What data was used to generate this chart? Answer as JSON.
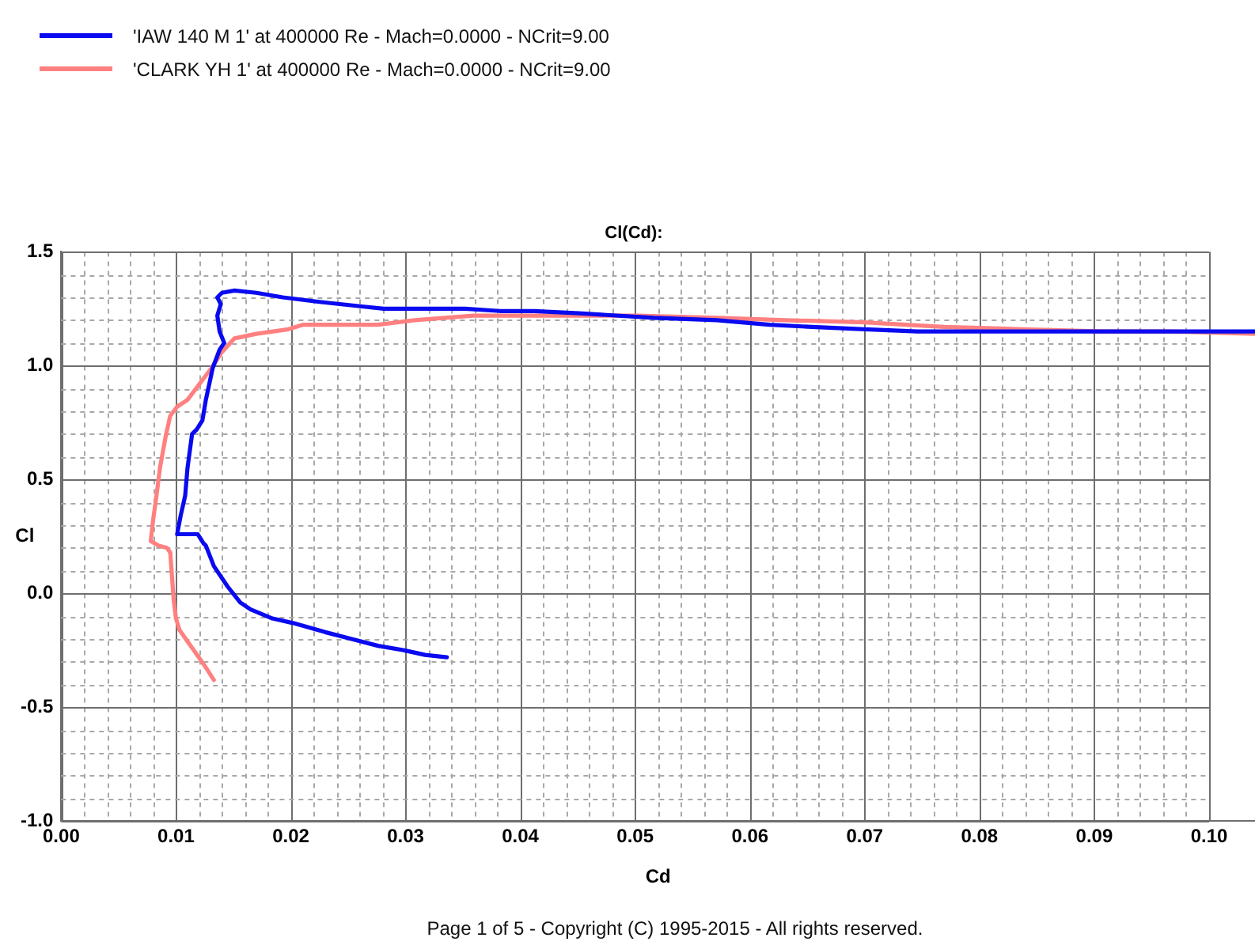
{
  "chart_data": {
    "type": "line",
    "title": "Cl(Cd):",
    "xlabel": "Cd",
    "ylabel": "Cl",
    "annotations": [
      "Page 1 of 5 - Copyright (C) 1995-2015 - All rights reserved."
    ],
    "legend": "top left",
    "grid": true,
    "marker": "none",
    "xlim": [
      0,
      0.104
    ],
    "ylim": [
      -1,
      1.5
    ],
    "xticks": [
      {
        "value": 0,
        "label": "0.00"
      },
      {
        "value": 0.002,
        "label": null
      },
      {
        "value": 0.004,
        "label": null
      },
      {
        "value": 0.006,
        "label": null
      },
      {
        "value": 0.008,
        "label": null
      },
      {
        "value": 0.01,
        "label": "0.01"
      },
      {
        "value": 0.012,
        "label": null
      },
      {
        "value": 0.014,
        "label": null
      },
      {
        "value": 0.016,
        "label": null
      },
      {
        "value": 0.018,
        "label": null
      },
      {
        "value": 0.02,
        "label": "0.02"
      },
      {
        "value": 0.022,
        "label": null
      },
      {
        "value": 0.024,
        "label": null
      },
      {
        "value": 0.026,
        "label": null
      },
      {
        "value": 0.028,
        "label": null
      },
      {
        "value": 0.03,
        "label": "0.03"
      },
      {
        "value": 0.032,
        "label": null
      },
      {
        "value": 0.034,
        "label": null
      },
      {
        "value": 0.036,
        "label": null
      },
      {
        "value": 0.038,
        "label": null
      },
      {
        "value": 0.04,
        "label": "0.04"
      },
      {
        "value": 0.042,
        "label": null
      },
      {
        "value": 0.044,
        "label": null
      },
      {
        "value": 0.046,
        "label": null
      },
      {
        "value": 0.048,
        "label": null
      },
      {
        "value": 0.05,
        "label": "0.05"
      },
      {
        "value": 0.052,
        "label": null
      },
      {
        "value": 0.054,
        "label": null
      },
      {
        "value": 0.056,
        "label": null
      },
      {
        "value": 0.058,
        "label": null
      },
      {
        "value": 0.06,
        "label": "0.06"
      },
      {
        "value": 0.062,
        "label": null
      },
      {
        "value": 0.064,
        "label": null
      },
      {
        "value": 0.066,
        "label": null
      },
      {
        "value": 0.068,
        "label": null
      },
      {
        "value": 0.07,
        "label": "0.07"
      },
      {
        "value": 0.072,
        "label": null
      },
      {
        "value": 0.074,
        "label": null
      },
      {
        "value": 0.076,
        "label": null
      },
      {
        "value": 0.078,
        "label": null
      },
      {
        "value": 0.08,
        "label": "0.08"
      },
      {
        "value": 0.082,
        "label": null
      },
      {
        "value": 0.084,
        "label": null
      },
      {
        "value": 0.086,
        "label": null
      },
      {
        "value": 0.088,
        "label": null
      },
      {
        "value": 0.09,
        "label": "0.09"
      },
      {
        "value": 0.092,
        "label": null
      },
      {
        "value": 0.094,
        "label": null
      },
      {
        "value": 0.096,
        "label": null
      },
      {
        "value": 0.098,
        "label": null
      },
      {
        "value": 0.1,
        "label": "0.10"
      }
    ],
    "yticks": [
      {
        "value": -1,
        "label": "-1.0"
      },
      {
        "value": -0.9,
        "label": null
      },
      {
        "value": -0.8,
        "label": null
      },
      {
        "value": -0.7,
        "label": null
      },
      {
        "value": -0.6,
        "label": null
      },
      -0.5,
      {
        "value": -0.4,
        "label": null
      },
      {
        "value": -0.3,
        "label": null
      },
      {
        "value": -0.2,
        "label": null
      },
      {
        "value": -0.1,
        "label": null
      },
      {
        "value": 0,
        "label": "0.0"
      },
      {
        "value": 0.1,
        "label": null
      },
      {
        "value": 0.2,
        "label": null
      },
      {
        "value": 0.3,
        "label": null
      },
      {
        "value": 0.4,
        "label": null
      },
      0.5,
      {
        "value": 0.6,
        "label": null
      },
      {
        "value": 0.7,
        "label": null
      },
      {
        "value": 0.8,
        "label": null
      },
      {
        "value": 0.9,
        "label": null
      },
      {
        "value": 1,
        "label": "1.0"
      },
      {
        "value": 1.1,
        "label": null
      },
      {
        "value": 1.2,
        "label": null
      },
      {
        "value": 1.3,
        "label": null
      },
      {
        "value": 1.4,
        "label": null
      },
      1.5
    ],
    "series": [
      {
        "name": "'IAW 140 M 1' at 400000 Re - Mach=0.0000 - NCrit=9.00",
        "color": "#0a0af0",
        "x": [
          0.0336,
          0.0317,
          0.0299,
          0.0276,
          0.0253,
          0.023,
          0.0202,
          0.0184,
          0.0165,
          0.0156,
          0.0145,
          0.0133,
          0.0126,
          0.0124,
          0.0119,
          0.0101,
          0.0104,
          0.0108,
          0.011,
          0.0114,
          0.0118,
          0.0123,
          0.0126,
          0.0132,
          0.0138,
          0.0142,
          0.0138,
          0.0136,
          0.0139,
          0.0136,
          0.014,
          0.0151,
          0.017,
          0.0193,
          0.0225,
          0.0262,
          0.0281,
          0.0331,
          0.0352,
          0.0382,
          0.0412,
          0.0451,
          0.0516,
          0.0571,
          0.0617,
          0.0654,
          0.07,
          0.0746,
          0.0783,
          0.0885,
          0.0967,
          0.1013,
          0.104
        ],
        "values": [
          -0.28,
          -0.27,
          -0.25,
          -0.23,
          -0.2,
          -0.17,
          -0.13,
          -0.11,
          -0.07,
          -0.04,
          0.03,
          0.12,
          0.21,
          0.22,
          0.26,
          0.26,
          0.34,
          0.43,
          0.55,
          0.7,
          0.72,
          0.76,
          0.85,
          0.99,
          1.07,
          1.1,
          1.15,
          1.22,
          1.27,
          1.3,
          1.32,
          1.33,
          1.32,
          1.3,
          1.28,
          1.26,
          1.25,
          1.25,
          1.25,
          1.24,
          1.24,
          1.23,
          1.21,
          1.2,
          1.18,
          1.17,
          1.16,
          1.15,
          1.15,
          1.15,
          1.15,
          1.15,
          1.15
        ]
      },
      {
        "name": "'CLARK YH 1' at 400000 Re - Mach=0.0000 - NCrit=9.00",
        "color": "#ff8080",
        "x": [
          0.0133,
          0.0124,
          0.0117,
          0.011,
          0.0103,
          0.01,
          0.0098,
          0.0096,
          0.0095,
          0.0092,
          0.0085,
          0.0078,
          0.008,
          0.0083,
          0.0086,
          0.0091,
          0.0095,
          0.0101,
          0.011,
          0.0119,
          0.0131,
          0.014,
          0.0151,
          0.017,
          0.0198,
          0.0211,
          0.0262,
          0.0276,
          0.0308,
          0.0359,
          0.04,
          0.0502,
          0.0571,
          0.0631,
          0.07,
          0.0769,
          0.0838,
          0.0908,
          0.0967,
          0.104
        ],
        "values": [
          -0.38,
          -0.31,
          -0.26,
          -0.21,
          -0.16,
          -0.11,
          -0.03,
          0.11,
          0.18,
          0.2,
          0.21,
          0.23,
          0.32,
          0.43,
          0.55,
          0.69,
          0.78,
          0.82,
          0.85,
          0.91,
          0.99,
          1.06,
          1.12,
          1.14,
          1.16,
          1.18,
          1.18,
          1.18,
          1.2,
          1.22,
          1.22,
          1.22,
          1.21,
          1.2,
          1.19,
          1.17,
          1.16,
          1.15,
          1.15,
          1.14
        ]
      }
    ]
  }
}
